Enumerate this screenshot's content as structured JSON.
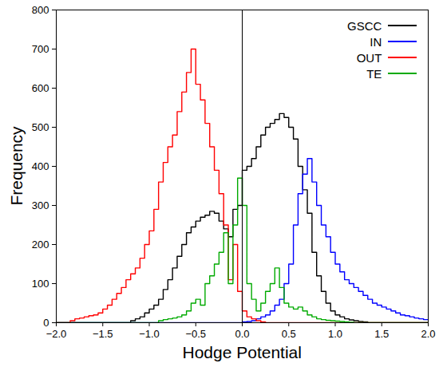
{
  "chart_data": {
    "type": "histogram",
    "x_label": "Hodge Potential",
    "y_label": "Frequency",
    "bins": [
      -2,
      -1.95,
      -1.9,
      -1.85,
      -1.8,
      -1.75,
      -1.7,
      -1.65,
      -1.6,
      -1.55,
      -1.5,
      -1.45,
      -1.4,
      -1.35,
      -1.3,
      -1.25,
      -1.2,
      -1.15,
      -1.1,
      -1.05,
      -1,
      -0.95,
      -0.9,
      -0.85,
      -0.8,
      -0.75,
      -0.7,
      -0.65,
      -0.6,
      -0.55,
      -0.5,
      -0.45,
      -0.4,
      -0.35,
      -0.3,
      -0.25,
      -0.2,
      -0.15,
      -0.1,
      -0.05,
      0,
      0.05,
      0.1,
      0.15,
      0.2,
      0.25,
      0.3,
      0.35,
      0.4,
      0.45,
      0.5,
      0.55,
      0.6,
      0.65,
      0.7,
      0.75,
      0.8,
      0.85,
      0.9,
      0.95,
      1,
      1.05,
      1.1,
      1.15,
      1.2,
      1.25,
      1.3,
      1.35,
      1.4,
      1.45,
      1.5,
      1.55,
      1.6,
      1.65,
      1.7,
      1.75,
      1.8,
      1.85,
      1.9,
      1.95,
      2
    ],
    "series": [
      {
        "name": "GSCC",
        "color": "#000000",
        "values": [
          0,
          0,
          0,
          0,
          0,
          0,
          0,
          0,
          0,
          0,
          0,
          0,
          0,
          0,
          0,
          0,
          5,
          10,
          15,
          25,
          35,
          45,
          60,
          85,
          110,
          140,
          170,
          200,
          230,
          245,
          260,
          270,
          275,
          285,
          280,
          260,
          240,
          220,
          290,
          300,
          390,
          400,
          420,
          450,
          480,
          500,
          510,
          520,
          535,
          525,
          500,
          470,
          400,
          340,
          280,
          180,
          120,
          80,
          50,
          30,
          20,
          15,
          10,
          7,
          5,
          3,
          2,
          0,
          0,
          0,
          0,
          0,
          0,
          0,
          0,
          0,
          0,
          0,
          0,
          0
        ]
      },
      {
        "name": "IN",
        "color": "#0000ff",
        "values": [
          0,
          0,
          0,
          0,
          0,
          0,
          0,
          0,
          0,
          0,
          0,
          0,
          0,
          0,
          0,
          0,
          0,
          0,
          0,
          0,
          0,
          0,
          0,
          0,
          0,
          0,
          0,
          0,
          0,
          0,
          0,
          0,
          0,
          0,
          0,
          0,
          0,
          0,
          0,
          0,
          2,
          3,
          5,
          10,
          15,
          20,
          30,
          45,
          60,
          100,
          150,
          250,
          330,
          380,
          420,
          360,
          300,
          250,
          220,
          180,
          150,
          130,
          110,
          100,
          90,
          80,
          70,
          60,
          50,
          45,
          40,
          35,
          30,
          25,
          20,
          18,
          15,
          12,
          10,
          8
        ]
      },
      {
        "name": "OUT",
        "color": "#ff0000",
        "values": [
          0,
          0,
          0,
          5,
          10,
          12,
          15,
          18,
          20,
          25,
          35,
          45,
          60,
          75,
          90,
          110,
          125,
          140,
          165,
          200,
          235,
          290,
          360,
          410,
          450,
          480,
          540,
          590,
          640,
          700,
          610,
          570,
          510,
          450,
          390,
          330,
          250,
          110,
          200,
          80,
          30,
          15,
          10,
          5,
          2,
          0,
          0,
          0,
          0,
          0,
          0,
          0,
          0,
          0,
          0,
          0,
          0,
          0,
          0,
          0,
          0,
          0,
          0,
          0,
          0,
          0,
          0,
          0,
          0,
          0,
          0,
          0,
          0,
          0,
          0,
          0,
          0,
          0,
          0,
          0
        ]
      },
      {
        "name": "TE",
        "color": "#00aa00",
        "values": [
          0,
          0,
          0,
          0,
          0,
          0,
          0,
          0,
          0,
          0,
          0,
          0,
          0,
          0,
          0,
          0,
          0,
          0,
          0,
          0,
          0,
          0,
          5,
          8,
          10,
          12,
          15,
          20,
          30,
          50,
          60,
          45,
          100,
          120,
          150,
          180,
          230,
          100,
          250,
          370,
          300,
          100,
          60,
          30,
          50,
          80,
          100,
          140,
          90,
          50,
          40,
          35,
          40,
          30,
          20,
          15,
          10,
          8,
          6,
          5,
          4,
          3,
          2,
          1,
          0,
          0,
          0,
          0,
          0,
          0,
          0,
          0,
          0,
          0,
          0,
          0,
          0,
          0,
          0,
          0
        ]
      }
    ],
    "vlines": [
      0
    ],
    "xlim": [
      -2,
      2
    ],
    "xticks": [
      -2,
      -1.5,
      -1,
      -0.5,
      0,
      0.5,
      1,
      1.5,
      2
    ],
    "ylim": [
      0,
      800
    ],
    "yticks": [
      0,
      100,
      200,
      300,
      400,
      500,
      600,
      700,
      800
    ],
    "legend": "top-right"
  }
}
